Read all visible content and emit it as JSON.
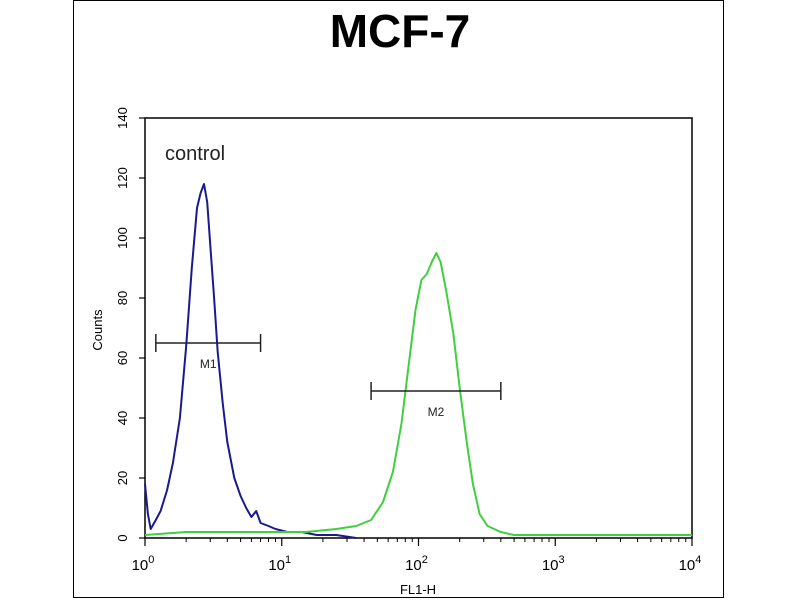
{
  "chart_data": {
    "type": "line",
    "title": "MCF-7",
    "xlabel": "FL1-H",
    "ylabel": "Counts",
    "x_scale": "log",
    "xlim": [
      1,
      10000
    ],
    "ylim": [
      0,
      140
    ],
    "x_ticks": [
      {
        "value": 1,
        "base": "10",
        "exp": "0"
      },
      {
        "value": 10,
        "base": "10",
        "exp": "1"
      },
      {
        "value": 100,
        "base": "10",
        "exp": "2"
      },
      {
        "value": 1000,
        "base": "10",
        "exp": "3"
      },
      {
        "value": 10000,
        "base": "10",
        "exp": "4"
      }
    ],
    "y_ticks": [
      0,
      20,
      40,
      60,
      80,
      100,
      120,
      140
    ],
    "annotation": "control",
    "colors": {
      "control": "#1a1a8c",
      "sample": "#3fcf3f"
    },
    "markers": [
      {
        "label": "M1",
        "x_start": 1.2,
        "x_end": 7.0,
        "y": 65
      },
      {
        "label": "M2",
        "x_start": 45,
        "x_end": 400,
        "y": 49
      }
    ],
    "series": [
      {
        "key": "control",
        "x": [
          1,
          1.05,
          1.1,
          1.2,
          1.3,
          1.45,
          1.6,
          1.8,
          2.0,
          2.2,
          2.4,
          2.55,
          2.7,
          2.85,
          3.0,
          3.2,
          3.4,
          3.7,
          4.0,
          4.5,
          5.0,
          5.5,
          6.0,
          6.5,
          7.0,
          8.0,
          9.0,
          11,
          14,
          18,
          25,
          35
        ],
        "y": [
          18,
          8,
          3,
          6,
          9,
          16,
          25,
          40,
          64,
          90,
          110,
          115,
          118,
          112,
          98,
          80,
          62,
          45,
          32,
          20,
          14,
          10,
          7,
          9,
          5,
          4,
          3,
          2,
          2,
          1,
          1,
          0
        ]
      },
      {
        "key": "sample",
        "x": [
          1,
          2,
          4,
          8,
          15,
          25,
          35,
          45,
          55,
          65,
          75,
          85,
          95,
          105,
          115,
          125,
          135,
          145,
          160,
          180,
          200,
          225,
          250,
          280,
          320,
          400,
          500,
          700,
          1000,
          2000,
          5000,
          10000
        ],
        "y": [
          1,
          2,
          2,
          2,
          2,
          3,
          4,
          6,
          12,
          22,
          38,
          58,
          76,
          86,
          88,
          92,
          95,
          92,
          82,
          68,
          50,
          32,
          18,
          8,
          4,
          2,
          1,
          1,
          1,
          1,
          1,
          1
        ]
      }
    ]
  }
}
